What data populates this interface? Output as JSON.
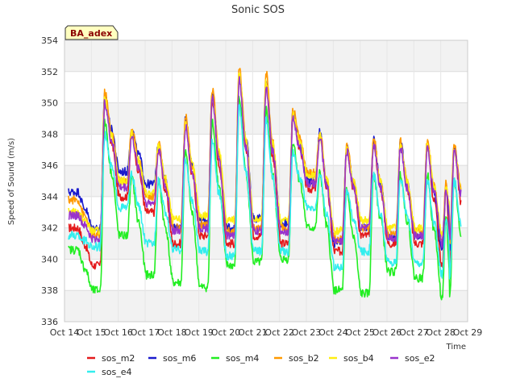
{
  "chart_data": {
    "type": "line",
    "title": "Sonic SOS",
    "xlabel": "Time",
    "ylabel": "Speed of Sound (m/s)",
    "annotation": "BA_adex",
    "ylim": [
      336,
      354
    ],
    "y_ticks": [
      336,
      338,
      340,
      342,
      344,
      346,
      348,
      350,
      352,
      354
    ],
    "x_ticks": [
      "Oct 14",
      "Oct 15",
      "Oct 16",
      "Oct 17",
      "Oct 18",
      "Oct 19",
      "Oct 20",
      "Oct 21",
      "Oct 22",
      "Oct 23",
      "Oct 24",
      "Oct 25",
      "Oct 26",
      "Oct 27",
      "Oct 28",
      "Oct 29"
    ],
    "x_range_days": [
      0,
      15
    ],
    "grid": true,
    "legend": "bottom",
    "day_start": [
      0.1,
      1,
      2,
      3,
      4,
      5,
      6,
      7,
      8,
      9,
      10,
      11,
      12,
      13,
      14
    ],
    "series": [
      {
        "name": "sos_m2",
        "color": "#e41a1c",
        "peak": [
          342.0,
          350.3,
          348.0,
          347.2,
          348.6,
          350.2,
          351.6,
          351.1,
          349.2,
          348.0,
          347.1,
          347.5,
          347.4,
          347.2,
          347.1
        ],
        "trough": [
          342.0,
          339.6,
          344.0,
          343.0,
          341.0,
          341.5,
          341.0,
          341.5,
          341.0,
          344.5,
          340.5,
          341.5,
          341.0,
          341.0,
          339.5
        ]
      },
      {
        "name": "sos_m6",
        "color": "#1a1acd",
        "peak": [
          344.3,
          350.5,
          348.3,
          347.4,
          349.0,
          350.6,
          351.8,
          351.3,
          349.4,
          348.2,
          347.2,
          347.7,
          347.5,
          347.4,
          347.2
        ],
        "trough": [
          344.3,
          342.0,
          345.6,
          344.8,
          342.0,
          342.5,
          342.0,
          342.6,
          342.3,
          345.0,
          341.0,
          342.0,
          341.5,
          341.5,
          340.5
        ]
      },
      {
        "name": "sos_m4",
        "color": "#22ee22",
        "peak": [
          340.6,
          348.8,
          345.2,
          345.0,
          346.8,
          348.8,
          350.3,
          349.6,
          347.5,
          345.5,
          344.4,
          345.5,
          345.5,
          345.4,
          345.0
        ],
        "trough": [
          340.6,
          338.0,
          341.5,
          339.0,
          338.5,
          338.2,
          339.6,
          339.8,
          340.0,
          342.0,
          338.0,
          337.8,
          339.2,
          338.8,
          337.5
        ]
      },
      {
        "name": "sos_b2",
        "color": "#ff9900",
        "peak": [
          343.8,
          350.7,
          348.4,
          347.6,
          349.1,
          350.9,
          352.3,
          351.9,
          349.6,
          348.2,
          347.3,
          347.8,
          347.6,
          347.6,
          347.4
        ],
        "trough": [
          343.8,
          341.5,
          345.0,
          344.0,
          342.0,
          342.2,
          341.8,
          342.0,
          342.0,
          345.5,
          341.3,
          342.0,
          341.6,
          341.8,
          341.0
        ]
      },
      {
        "name": "sos_b4",
        "color": "#ffee11",
        "peak": [
          343.0,
          350.2,
          348.0,
          347.3,
          348.7,
          350.4,
          351.8,
          351.3,
          349.2,
          347.9,
          347.0,
          347.4,
          347.3,
          347.2,
          347.0
        ],
        "trough": [
          343.0,
          341.8,
          345.0,
          344.2,
          342.5,
          342.8,
          342.5,
          342.5,
          342.5,
          345.3,
          341.8,
          342.5,
          342.0,
          342.0,
          341.5
        ]
      },
      {
        "name": "sos_e2",
        "color": "#9933cc",
        "peak": [
          342.8,
          350.0,
          347.8,
          347.0,
          348.5,
          350.2,
          351.5,
          351.0,
          349.0,
          347.7,
          346.9,
          347.3,
          347.1,
          347.0,
          346.9
        ],
        "trough": [
          342.8,
          341.3,
          344.6,
          343.6,
          341.8,
          342.0,
          341.5,
          341.8,
          341.8,
          344.8,
          341.2,
          342.0,
          341.4,
          341.5,
          341.0
        ]
      },
      {
        "name": "sos_e4",
        "color": "#33eeee",
        "peak": [
          341.5,
          348.0,
          345.4,
          345.0,
          346.3,
          347.5,
          349.8,
          349.0,
          346.9,
          345.5,
          344.3,
          345.4,
          345.2,
          345.0,
          345.0
        ],
        "trough": [
          341.5,
          340.8,
          343.3,
          341.0,
          340.6,
          340.5,
          340.2,
          340.5,
          340.5,
          343.2,
          339.5,
          340.5,
          339.8,
          339.8,
          339.0
        ]
      }
    ]
  }
}
